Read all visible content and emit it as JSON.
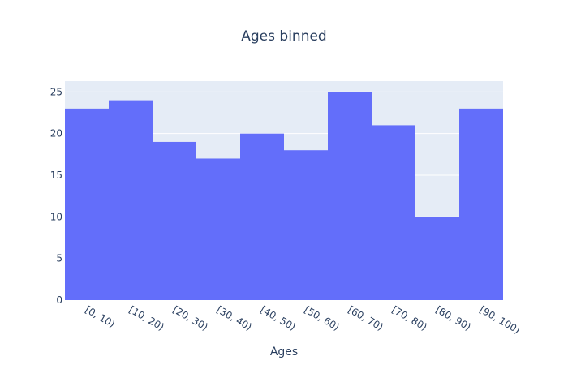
{
  "chart_data": {
    "type": "bar",
    "title": "Ages binned",
    "xlabel": "Ages",
    "ylabel": "",
    "categories": [
      "[0, 10)",
      "[10, 20)",
      "[20, 30)",
      "[30, 40)",
      "[40, 50)",
      "[50, 60)",
      "[60, 70)",
      "[70, 80)",
      "[80, 90)",
      "[90, 100)"
    ],
    "values": [
      23,
      24,
      19,
      17,
      20,
      18,
      25,
      21,
      10,
      23
    ],
    "ylim": [
      0,
      26.3
    ],
    "yticks": [
      0,
      5,
      10,
      15,
      20,
      25
    ],
    "grid": true,
    "legend": "none",
    "colors": {
      "bar": "#636efa",
      "plot_bg": "#e5ecf6",
      "grid": "#ffffff",
      "text": "#2a3f5f"
    }
  }
}
